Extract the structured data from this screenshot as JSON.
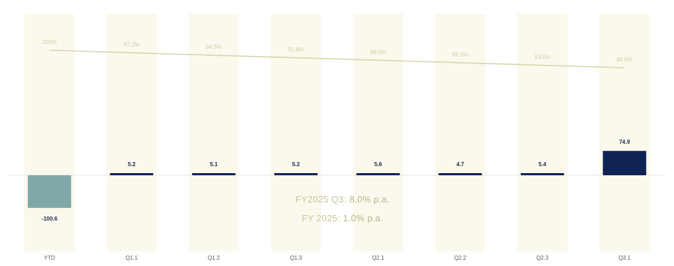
{
  "chart_data": {
    "type": "bar",
    "categories": [
      "YTD",
      "Q1.1",
      "Q1.2",
      "Q1.3",
      "Q2.1",
      "Q2.2",
      "Q2.3",
      "Q3.1"
    ],
    "values": [
      -100.6,
      5.2,
      5.1,
      5.2,
      5.6,
      4.7,
      5.4,
      74.9
    ],
    "value_labels": [
      "-100.6",
      "5.2",
      "5.1",
      "5.2",
      "5.6",
      "4.7",
      "5.4",
      "74.9"
    ],
    "line": {
      "values": [
        100.0,
        97.2,
        94.5,
        91.8,
        89.0,
        86.3,
        83.5,
        80.8
      ],
      "labels": [
        "100%",
        "97.2%",
        "94.5%",
        "91.8%",
        "89.0%",
        "86.3%",
        "83.5%",
        "80.8%"
      ]
    },
    "notes": [
      {
        "label": "FY2025 Q3:",
        "value": "8.0% p.a."
      },
      {
        "label": "FY 2025:",
        "value": "1.0% p.a."
      }
    ],
    "colors": {
      "negative_bar": "#7fa9a8",
      "positive_bar": "#0e2352",
      "column_band": "#fbf8ee",
      "line": "#d9d4ac",
      "line_label": "#d2cda4",
      "baseline": "#e8e6dc"
    }
  }
}
